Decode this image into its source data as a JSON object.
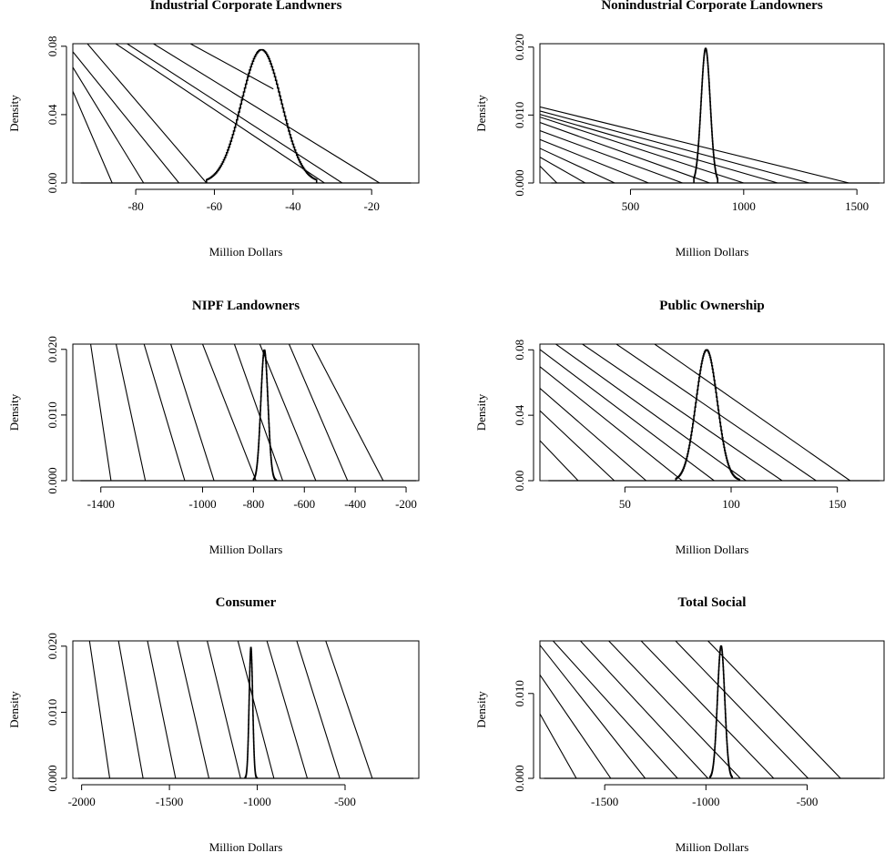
{
  "chart_data": [
    {
      "type": "histogram",
      "title": "Industrial Corporate Landwners",
      "xlabel": "Million Dollars",
      "ylabel": "Density",
      "xlim": [
        -96,
        -8
      ],
      "ylim": [
        0,
        0.0815
      ],
      "x_ticks": [
        -80,
        -60,
        -40,
        -20
      ],
      "x_tick_labels": [
        "-80",
        "-60",
        "-40",
        "-20"
      ],
      "y_ticks": [
        0,
        0.04,
        0.08
      ],
      "y_tick_labels": [
        "0.00",
        "0.04",
        "0.08"
      ],
      "baseline": [
        -94,
        -10
      ],
      "distribution": {
        "mean": -48,
        "sd": 5.1,
        "peak": 0.078,
        "support": [
          -62,
          -34
        ]
      },
      "lines": [
        {
          "x": [
            -86,
            -96
          ],
          "y": [
            0,
            0.0537
          ]
        },
        {
          "x": [
            -78,
            -96
          ],
          "y": [
            0,
            0.0677
          ]
        },
        {
          "x": [
            -69,
            -96
          ],
          "y": [
            0,
            0.0768
          ]
        },
        {
          "x": [
            -62,
            -92.3
          ],
          "y": [
            0,
            0.0815
          ]
        },
        {
          "x": [
            -32,
            -85.1
          ],
          "y": [
            0,
            0.0815
          ]
        },
        {
          "x": [
            -27.5,
            -82.2
          ],
          "y": [
            0,
            0.0815
          ]
        },
        {
          "x": [
            -18,
            -75.5
          ],
          "y": [
            0,
            0.0815
          ]
        },
        {
          "x": [
            -45,
            -66.1
          ],
          "y": [
            0.055,
            0.0815
          ]
        }
      ]
    },
    {
      "type": "histogram",
      "title": "Nonindustrial Corporate Landowners",
      "xlabel": "Million Dollars",
      "ylabel": "Density",
      "xlim": [
        100,
        1620
      ],
      "ylim": [
        0,
        0.0205
      ],
      "x_ticks": [
        500,
        1000,
        1500
      ],
      "x_tick_labels": [
        "500",
        "1000",
        "1500"
      ],
      "y_ticks": [
        0,
        0.01,
        0.02
      ],
      "y_tick_labels": [
        "0.000",
        "0.010",
        "0.020"
      ],
      "baseline": [
        150,
        1600
      ],
      "distribution": {
        "mean": 832,
        "sd": 20,
        "peak": 0.0198,
        "support": [
          780,
          885
        ]
      },
      "lines": [
        {
          "x": [
            175,
            100
          ],
          "y": [
            0,
            0.0025
          ]
        },
        {
          "x": [
            300,
            100
          ],
          "y": [
            0,
            0.0038
          ]
        },
        {
          "x": [
            430,
            100
          ],
          "y": [
            0,
            0.0051
          ]
        },
        {
          "x": [
            580,
            100
          ],
          "y": [
            0,
            0.0064
          ]
        },
        {
          "x": [
            730,
            100
          ],
          "y": [
            0,
            0.0077
          ]
        },
        {
          "x": [
            850,
            100
          ],
          "y": [
            0,
            0.0089
          ]
        },
        {
          "x": [
            1000,
            100
          ],
          "y": [
            0,
            0.0097
          ]
        },
        {
          "x": [
            1150,
            100
          ],
          "y": [
            0,
            0.0101
          ]
        },
        {
          "x": [
            1290,
            100
          ],
          "y": [
            0,
            0.0106
          ]
        },
        {
          "x": [
            1465,
            100
          ],
          "y": [
            0,
            0.0112
          ]
        }
      ]
    },
    {
      "type": "histogram",
      "title": "NIPF Landowners",
      "xlabel": "Million Dollars",
      "ylabel": "Density",
      "xlim": [
        -1510,
        -150
      ],
      "ylim": [
        0,
        0.0208
      ],
      "x_ticks": [
        -1400,
        -1000,
        -800,
        -600,
        -400,
        -200
      ],
      "x_tick_labels": [
        "-1400",
        "-1000",
        "-800",
        "-600",
        "-400",
        "-200"
      ],
      "y_ticks": [
        0,
        0.01,
        0.02
      ],
      "y_tick_labels": [
        "0.000",
        "0.010",
        "0.020"
      ],
      "baseline": [
        -1480,
        -160
      ],
      "distribution": {
        "mean": -757,
        "sd": 14,
        "peak": 0.0199,
        "support": [
          -800,
          -710
        ]
      },
      "lines": [
        {
          "x": [
            -1360,
            -1440
          ],
          "y": [
            0,
            0.0208
          ]
        },
        {
          "x": [
            -1225,
            -1340
          ],
          "y": [
            0,
            0.0208
          ]
        },
        {
          "x": [
            -1070,
            -1230
          ],
          "y": [
            0,
            0.0208
          ]
        },
        {
          "x": [
            -955,
            -1125
          ],
          "y": [
            0,
            0.0208
          ]
        },
        {
          "x": [
            -790,
            -1000
          ],
          "y": [
            0,
            0.0208
          ]
        },
        {
          "x": [
            -685,
            -875
          ],
          "y": [
            0,
            0.0208
          ]
        },
        {
          "x": [
            -555,
            -775
          ],
          "y": [
            0,
            0.0208
          ]
        },
        {
          "x": [
            -430,
            -660
          ],
          "y": [
            0,
            0.0208
          ]
        },
        {
          "x": [
            -290,
            -570
          ],
          "y": [
            0,
            0.0208
          ]
        }
      ]
    },
    {
      "type": "histogram",
      "title": "Public Ownership",
      "xlabel": "Million Dollars",
      "ylabel": "Density",
      "xlim": [
        10,
        172
      ],
      "ylim": [
        0,
        0.0835
      ],
      "x_ticks": [
        50,
        100,
        150
      ],
      "x_tick_labels": [
        "50",
        "100",
        "150"
      ],
      "y_ticks": [
        0,
        0.04,
        0.08
      ],
      "y_tick_labels": [
        "0.00",
        "0.04",
        "0.08"
      ],
      "baseline": [
        14,
        170
      ],
      "distribution": {
        "mean": 88.5,
        "sd": 5.0,
        "peak": 0.08,
        "support": [
          74,
          104
        ]
      },
      "lines": [
        {
          "x": [
            28,
            10
          ],
          "y": [
            0,
            0.0245
          ]
        },
        {
          "x": [
            45,
            10
          ],
          "y": [
            0,
            0.0428
          ]
        },
        {
          "x": [
            60,
            10
          ],
          "y": [
            0,
            0.0565
          ]
        },
        {
          "x": [
            77,
            10
          ],
          "y": [
            0,
            0.0697
          ]
        },
        {
          "x": [
            92,
            10
          ],
          "y": [
            0,
            0.0802
          ]
        },
        {
          "x": [
            107,
            17.5
          ],
          "y": [
            0,
            0.0835
          ]
        },
        {
          "x": [
            124,
            30
          ],
          "y": [
            0,
            0.0835
          ]
        },
        {
          "x": [
            140,
            46
          ],
          "y": [
            0,
            0.0835
          ]
        },
        {
          "x": [
            156,
            64
          ],
          "y": [
            0,
            0.0835
          ]
        }
      ]
    },
    {
      "type": "histogram",
      "title": "Consumer",
      "xlabel": "Million Dollars",
      "ylabel": "Density",
      "xlim": [
        -2050,
        -80
      ],
      "ylim": [
        0,
        0.0208
      ],
      "x_ticks": [
        -2000,
        -1500,
        -1000,
        -500
      ],
      "x_tick_labels": [
        "-2000",
        "-1500",
        "-1000",
        "-500"
      ],
      "y_ticks": [
        0,
        0.01,
        0.02
      ],
      "y_tick_labels": [
        "0.000",
        "0.010",
        "0.020"
      ],
      "baseline": [
        -2020,
        -110
      ],
      "distribution": {
        "mean": -1036,
        "sd": 10,
        "peak": 0.0198,
        "support": [
          -1070,
          -1000
        ]
      },
      "lines": [
        {
          "x": [
            -1840,
            -1955
          ],
          "y": [
            0,
            0.0208
          ]
        },
        {
          "x": [
            -1650,
            -1790
          ],
          "y": [
            0,
            0.0208
          ]
        },
        {
          "x": [
            -1465,
            -1625
          ],
          "y": [
            0,
            0.0208
          ]
        },
        {
          "x": [
            -1275,
            -1455
          ],
          "y": [
            0,
            0.0208
          ]
        },
        {
          "x": [
            -1095,
            -1285
          ],
          "y": [
            0,
            0.0208
          ]
        },
        {
          "x": [
            -905,
            -1110
          ],
          "y": [
            0,
            0.0208
          ]
        },
        {
          "x": [
            -715,
            -945
          ],
          "y": [
            0,
            0.0208
          ]
        },
        {
          "x": [
            -530,
            -775
          ],
          "y": [
            0,
            0.0208
          ]
        },
        {
          "x": [
            -345,
            -610
          ],
          "y": [
            0,
            0.0208
          ]
        }
      ]
    },
    {
      "type": "histogram",
      "title": "Total Social",
      "xlabel": "Million Dollars",
      "ylabel": "Density",
      "xlim": [
        -1820,
        -120
      ],
      "ylim": [
        0,
        0.0162
      ],
      "x_ticks": [
        -1500,
        -1000,
        -500
      ],
      "x_tick_labels": [
        "-1500",
        "-1000",
        "-500"
      ],
      "y_ticks": [
        0,
        0.01
      ],
      "y_tick_labels": [
        "0.000",
        "0.010"
      ],
      "baseline": [
        -1800,
        -140
      ],
      "distribution": {
        "mean": -925,
        "sd": 18,
        "peak": 0.0156,
        "support": [
          -980,
          -870
        ]
      },
      "lines": [
        {
          "x": [
            -1640,
            -1820
          ],
          "y": [
            0,
            0.0076
          ]
        },
        {
          "x": [
            -1470,
            -1820
          ],
          "y": [
            0,
            0.0122
          ]
        },
        {
          "x": [
            -1300,
            -1820
          ],
          "y": [
            0,
            0.0157
          ]
        },
        {
          "x": [
            -1140,
            -1755
          ],
          "y": [
            0,
            0.0162
          ]
        },
        {
          "x": [
            -990,
            -1620
          ],
          "y": [
            0,
            0.0162
          ]
        },
        {
          "x": [
            -830,
            -1480
          ],
          "y": [
            0,
            0.0162
          ]
        },
        {
          "x": [
            -665,
            -1320
          ],
          "y": [
            0,
            0.0162
          ]
        },
        {
          "x": [
            -495,
            -1150
          ],
          "y": [
            0,
            0.0162
          ]
        },
        {
          "x": [
            -335,
            -990
          ],
          "y": [
            0,
            0.0162
          ]
        }
      ]
    }
  ]
}
